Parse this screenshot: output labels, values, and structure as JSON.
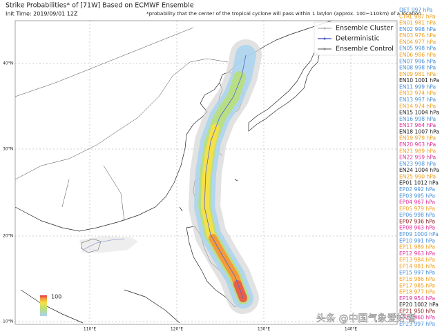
{
  "header": {
    "title": "Strike Probabilities* of [71W] Based on ECMWF Ensemble",
    "init_time": "Init Time: 2019/09/01 12Z",
    "note": "*probability that the center of the tropical cyclone will pass within 1 lat/lon (approx. 100~110km) of a location"
  },
  "legend": {
    "items": [
      {
        "label": "Ensemble Cluster",
        "color": "#bbbbbb"
      },
      {
        "label": "Deterministic",
        "color": "#5566cc"
      },
      {
        "label": "Ensemble Control",
        "color": "#888888"
      }
    ]
  },
  "axes": {
    "lat_labels": [
      "40°N",
      "30°N",
      "20°N",
      "10°N"
    ],
    "lon_labels": [
      "110°E",
      "120°E",
      "130°E",
      "140°E"
    ]
  },
  "colorbar": {
    "label": "100"
  },
  "members": [
    {
      "label": "DET 997 hPa",
      "color": "#4a90d9"
    },
    {
      "label": "CTRL 987 hPa",
      "color": "#f0a020"
    },
    {
      "label": "EN01 981 hPa",
      "color": "#f0a020"
    },
    {
      "label": "EN02 998 hPa",
      "color": "#4a90d9"
    },
    {
      "label": "EN03 976 hPa",
      "color": "#f0a020"
    },
    {
      "label": "EN04 977 hPa",
      "color": "#f0a020"
    },
    {
      "label": "EN05 998 hPa",
      "color": "#4a90d9"
    },
    {
      "label": "EN06 986 hPa",
      "color": "#f0a020"
    },
    {
      "label": "EN07 996 hPa",
      "color": "#4a90d9"
    },
    {
      "label": "EN08 998 hPa",
      "color": "#4a90d9"
    },
    {
      "label": "EN09 981 hPa",
      "color": "#f0a020"
    },
    {
      "label": "EN10 1001 hPa",
      "color": "#222222"
    },
    {
      "label": "EN11 999 hPa",
      "color": "#4a90d9"
    },
    {
      "label": "EN12 974 hPa",
      "color": "#f0a020"
    },
    {
      "label": "EN13 997 hPa",
      "color": "#4a90d9"
    },
    {
      "label": "EN14 974 hPa",
      "color": "#f0a020"
    },
    {
      "label": "EN15 1004 hPa",
      "color": "#222222"
    },
    {
      "label": "EN16 998 hPa",
      "color": "#4a90d9"
    },
    {
      "label": "EN17 964 hPa",
      "color": "#e0309a"
    },
    {
      "label": "EN18 1007 hPa",
      "color": "#222222"
    },
    {
      "label": "EN19 979 hPa",
      "color": "#f0a020"
    },
    {
      "label": "EN20 963 hPa",
      "color": "#e0309a"
    },
    {
      "label": "EN21 989 hPa",
      "color": "#f0a020"
    },
    {
      "label": "EN22 959 hPa",
      "color": "#e0309a"
    },
    {
      "label": "EN23 998 hPa",
      "color": "#4a90d9"
    },
    {
      "label": "EN24 1004 hPa",
      "color": "#222222"
    },
    {
      "label": "EN25 990 hPa",
      "color": "#f0a020"
    },
    {
      "label": "EP01 1012 hPa",
      "color": "#222222"
    },
    {
      "label": "EP02 992 hPa",
      "color": "#4a90d9"
    },
    {
      "label": "EP03 995 hPa",
      "color": "#4a90d9"
    },
    {
      "label": "EP04 967 hPa",
      "color": "#e0309a"
    },
    {
      "label": "EP05 979 hPa",
      "color": "#f0a020"
    },
    {
      "label": "EP06 998 hPa",
      "color": "#4a90d9"
    },
    {
      "label": "EP07 936 hPa",
      "color": "#8b1a1a"
    },
    {
      "label": "EP08 963 hPa",
      "color": "#e0309a"
    },
    {
      "label": "EP09 1000 hPa",
      "color": "#4a90d9"
    },
    {
      "label": "EP10 991 hPa",
      "color": "#4a90d9"
    },
    {
      "label": "EP11 989 hPa",
      "color": "#f0a020"
    },
    {
      "label": "EP12 963 hPa",
      "color": "#e0309a"
    },
    {
      "label": "EP13 984 hPa",
      "color": "#f0a020"
    },
    {
      "label": "EP14 981 hPa",
      "color": "#f0a020"
    },
    {
      "label": "EP15 997 hPa",
      "color": "#4a90d9"
    },
    {
      "label": "EP16 986 hPa",
      "color": "#f0a020"
    },
    {
      "label": "EP17 985 hPa",
      "color": "#f0a020"
    },
    {
      "label": "EP18 977 hPa",
      "color": "#f0a020"
    },
    {
      "label": "EP19 954 hPa",
      "color": "#e0309a"
    },
    {
      "label": "EP20 1002 hPa",
      "color": "#222222"
    },
    {
      "label": "EP21 950 hPa",
      "color": "#8b1a1a"
    },
    {
      "label": "EP22 960 hPa",
      "color": "#e0309a"
    },
    {
      "label": "EP23 997 hPa",
      "color": "#4a90d9"
    }
  ],
  "watermark": "头条 @中国气象爱好者"
}
